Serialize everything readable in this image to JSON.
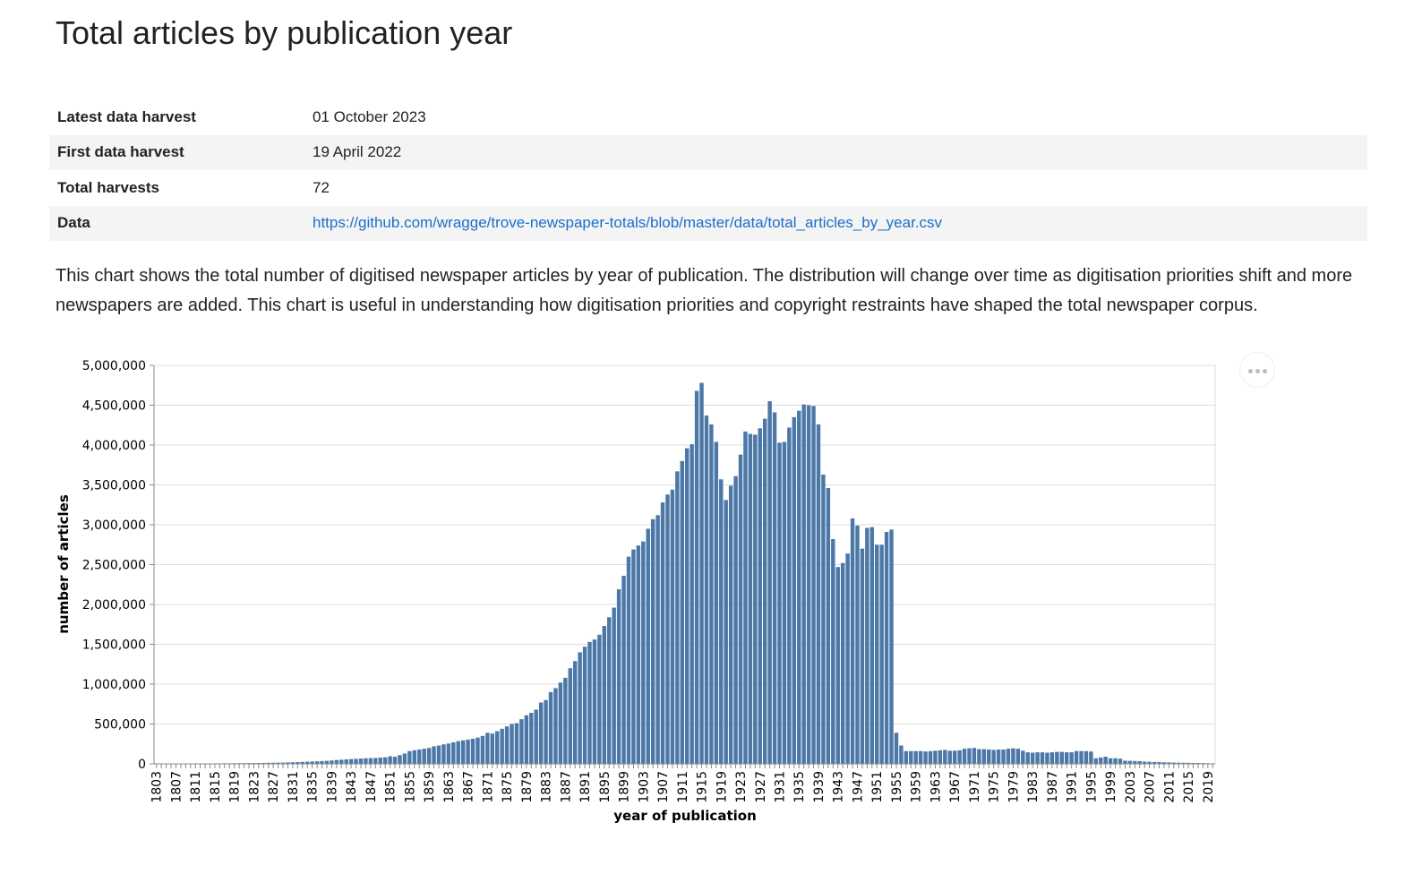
{
  "header": {
    "title": "Total articles by publication year"
  },
  "table": {
    "rows": [
      [
        "Latest data harvest",
        "01 October 2023"
      ],
      [
        "First data harvest",
        "19 April 2022"
      ],
      [
        "Total harvests",
        "72"
      ],
      [
        "Data",
        "https://github.com/wragge/trove-newspaper-totals/blob/master/data/total_articles_by_year.csv"
      ]
    ]
  },
  "paragraph": "This chart shows the total number of digitised newspaper articles by year of publication. The distribution will change over time as digitisation priorities shift and more newspapers are added. This chart is useful in understanding how digitisation priorities and copyright restraints have shaped the total newspaper corpus.",
  "chart_data": {
    "type": "bar",
    "x_label": "year of publication",
    "y_label": "number of articles",
    "color": "#4c78a8",
    "grid": true,
    "ylim": [
      0,
      5000000
    ],
    "yticks": [
      0,
      {
        "value": 500000,
        "label": "500,000"
      },
      {
        "value": 1000000,
        "label": "1,000,000"
      },
      {
        "value": 1500000,
        "label": "1,500,000"
      },
      {
        "value": 2000000,
        "label": "2,000,000"
      },
      {
        "value": 2500000,
        "label": "2,500,000"
      },
      {
        "value": 3000000,
        "label": "3,000,000"
      },
      {
        "value": 3500000,
        "label": "3,500,000"
      },
      {
        "value": 4000000,
        "label": "4,000,000"
      },
      {
        "value": 4500000,
        "label": "4,500,000"
      },
      {
        "value": 5000000,
        "label": "5,000,000"
      }
    ],
    "categories": [
      "1803",
      null,
      null,
      null,
      "1807",
      null,
      null,
      null,
      "1811",
      null,
      null,
      null,
      "1815",
      null,
      null,
      null,
      "1819",
      null,
      null,
      null,
      "1823",
      null,
      null,
      null,
      "1827",
      null,
      null,
      null,
      "1831",
      null,
      null,
      null,
      "1835",
      null,
      null,
      null,
      "1839",
      null,
      null,
      null,
      "1843",
      null,
      null,
      null,
      "1847",
      null,
      null,
      null,
      "1851",
      null,
      null,
      null,
      "1855",
      null,
      null,
      null,
      "1859",
      null,
      null,
      null,
      "1863",
      null,
      null,
      null,
      "1867",
      null,
      null,
      null,
      "1871",
      null,
      null,
      null,
      "1875",
      null,
      null,
      null,
      "1879",
      null,
      null,
      null,
      "1883",
      null,
      null,
      null,
      "1887",
      null,
      null,
      null,
      "1891",
      null,
      null,
      null,
      "1895",
      null,
      null,
      null,
      "1899",
      null,
      null,
      null,
      "1903",
      null,
      null,
      null,
      "1907",
      null,
      null,
      null,
      "1911",
      null,
      null,
      null,
      "1915",
      null,
      null,
      null,
      "1919",
      null,
      null,
      null,
      "1923",
      null,
      null,
      null,
      "1927",
      null,
      null,
      null,
      "1931",
      null,
      null,
      null,
      "1935",
      null,
      null,
      null,
      "1939",
      null,
      null,
      null,
      "1943",
      null,
      null,
      null,
      "1947",
      null,
      null,
      null,
      "1951",
      null,
      null,
      null,
      "1955",
      null,
      null,
      null,
      "1959",
      null,
      null,
      null,
      "1963",
      null,
      null,
      null,
      "1967",
      null,
      null,
      null,
      "1971",
      null,
      null,
      null,
      "1975",
      null,
      null,
      null,
      "1979",
      null,
      null,
      null,
      "1983",
      null,
      null,
      null,
      "1987",
      null,
      null,
      null,
      "1991",
      null,
      null,
      null,
      "1995",
      null,
      null,
      null,
      "1999",
      null,
      null,
      null,
      "2003",
      null,
      null,
      null,
      "2007",
      null,
      null,
      null,
      "2011",
      null,
      null,
      null,
      "2015",
      null,
      null,
      null,
      "2019",
      null
    ],
    "values": [
      3000,
      3000,
      4000,
      4000,
      4000,
      5000,
      5000,
      5000,
      5000,
      5000,
      6000,
      6000,
      6000,
      6000,
      7000,
      7000,
      8000,
      8000,
      9000,
      10000,
      10000,
      11000,
      12000,
      13000,
      14000,
      15000,
      16000,
      18000,
      20000,
      22000,
      25000,
      27000,
      30000,
      32000,
      35000,
      38000,
      42000,
      48000,
      52000,
      56000,
      60000,
      63000,
      66000,
      70000,
      72000,
      74000,
      78000,
      82000,
      95000,
      90000,
      110000,
      130000,
      160000,
      170000,
      180000,
      190000,
      200000,
      220000,
      230000,
      245000,
      255000,
      270000,
      285000,
      295000,
      305000,
      315000,
      330000,
      350000,
      390000,
      380000,
      410000,
      440000,
      470000,
      500000,
      510000,
      560000,
      610000,
      640000,
      680000,
      770000,
      800000,
      900000,
      950000,
      1020000,
      1080000,
      1200000,
      1290000,
      1400000,
      1470000,
      1530000,
      1560000,
      1620000,
      1730000,
      1840000,
      1960000,
      2190000,
      2360000,
      2600000,
      2690000,
      2740000,
      2790000,
      2950000,
      3070000,
      3120000,
      3280000,
      3380000,
      3440000,
      3670000,
      3800000,
      3960000,
      4010000,
      4680000,
      4780000,
      4370000,
      4260000,
      4040000,
      3570000,
      3310000,
      3490000,
      3610000,
      3880000,
      4170000,
      4140000,
      4130000,
      4210000,
      4330000,
      4550000,
      4410000,
      4030000,
      4040000,
      4220000,
      4350000,
      4430000,
      4510000,
      4500000,
      4490000,
      4260000,
      3630000,
      3460000,
      2820000,
      2470000,
      2520000,
      2640000,
      3080000,
      2990000,
      2700000,
      2960000,
      2970000,
      2750000,
      2750000,
      2910000,
      2940000,
      390000,
      230000,
      160000,
      160000,
      160000,
      160000,
      155000,
      160000,
      165000,
      170000,
      175000,
      165000,
      165000,
      170000,
      190000,
      195000,
      200000,
      185000,
      185000,
      180000,
      175000,
      180000,
      180000,
      190000,
      195000,
      190000,
      165000,
      145000,
      140000,
      145000,
      145000,
      140000,
      145000,
      150000,
      150000,
      145000,
      145000,
      160000,
      160000,
      160000,
      155000,
      70000,
      80000,
      90000,
      70000,
      70000,
      65000,
      40000,
      38000,
      36000,
      34000,
      28000,
      26000,
      24000,
      22000,
      20000,
      18000,
      16000,
      15000,
      14000,
      13000,
      12000,
      11000,
      10000,
      8000,
      6000
    ]
  }
}
